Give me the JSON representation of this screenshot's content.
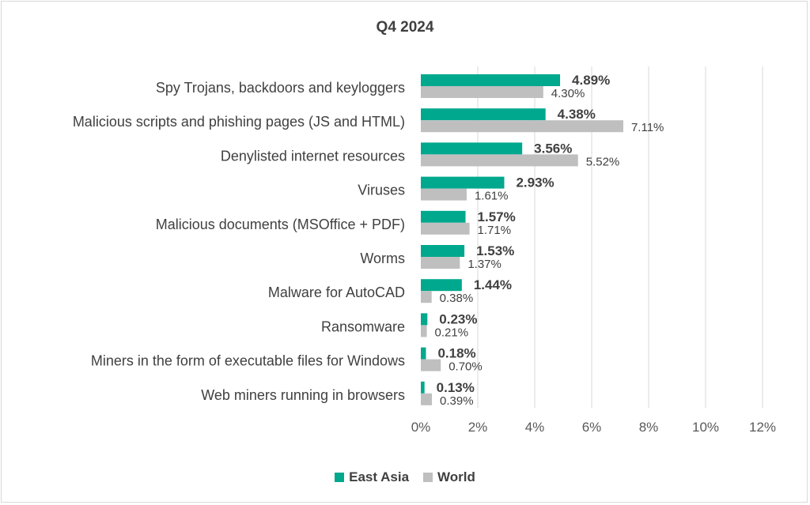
{
  "colors": {
    "east_asia": "#00A88E",
    "world": "#BFBFBF",
    "grid": "#D9D9D9",
    "text": "#404040"
  },
  "chart_data": {
    "type": "bar",
    "orientation": "horizontal",
    "title": "Q4 2024",
    "categories": [
      "Spy Trojans, backdoors and keyloggers",
      "Malicious scripts and phishing pages (JS and HTML)",
      "Denylisted internet resources",
      "Viruses",
      "Malicious documents (MSOffice + PDF)",
      "Worms",
      "Malware for AutoCAD",
      "Ransomware",
      "Miners in the form of executable files for Windows",
      "Web miners running in browsers"
    ],
    "series": [
      {
        "name": "East Asia",
        "values": [
          4.89,
          4.38,
          3.56,
          2.93,
          1.57,
          1.53,
          1.44,
          0.23,
          0.18,
          0.13
        ],
        "labels": [
          "4.89%",
          "4.38%",
          "3.56%",
          "2.93%",
          "1.57%",
          "1.53%",
          "1.44%",
          "0.23%",
          "0.18%",
          "0.13%"
        ]
      },
      {
        "name": "World",
        "values": [
          4.3,
          7.11,
          5.52,
          1.61,
          1.71,
          1.37,
          0.38,
          0.21,
          0.7,
          0.39
        ],
        "labels": [
          "4.30%",
          "7.11%",
          "5.52%",
          "1.61%",
          "1.71%",
          "1.37%",
          "0.38%",
          "0.21%",
          "0.70%",
          "0.39%"
        ]
      }
    ],
    "xlim": [
      0,
      12
    ],
    "xticks": [
      0,
      2,
      4,
      6,
      8,
      10,
      12
    ],
    "xtick_labels": [
      "0%",
      "2%",
      "4%",
      "6%",
      "8%",
      "10%",
      "12%"
    ],
    "grid": true,
    "legend_position": "bottom"
  }
}
